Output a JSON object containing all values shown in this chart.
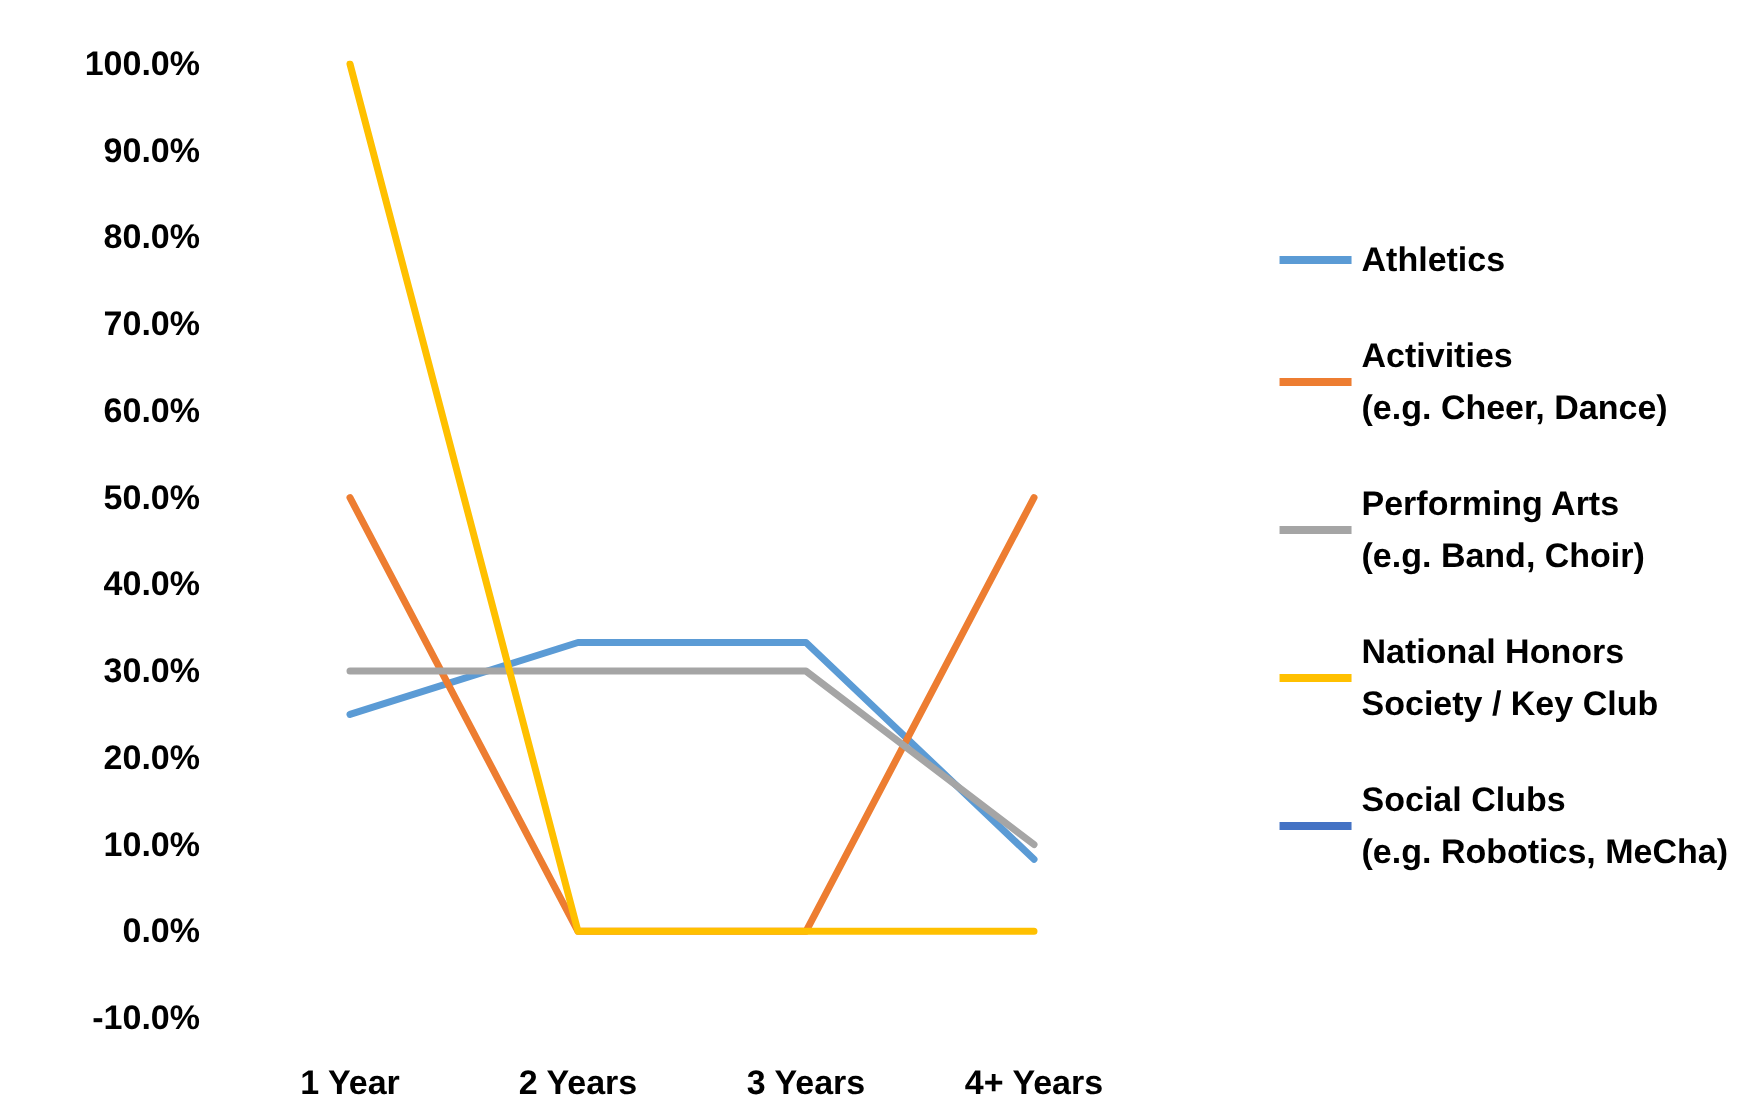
{
  "chart_data": {
    "type": "line",
    "categories": [
      "1 Year",
      "2 Years",
      "3 Years",
      "4+ Years"
    ],
    "series": [
      {
        "name": "Athletics",
        "color": "#5b9bd5",
        "values": [
          25,
          33.3,
          33.3,
          8.3
        ]
      },
      {
        "name": "Activities\n(e.g. Cheer, Dance)",
        "color": "#ed7d31",
        "values": [
          50,
          0,
          0,
          50
        ]
      },
      {
        "name": "Performing Arts\n(e.g. Band, Choir)",
        "color": "#a5a5a5",
        "values": [
          30,
          30,
          30,
          10
        ]
      },
      {
        "name": "National Honors\nSociety / Key Club",
        "color": "#ffc000",
        "values": [
          100,
          0,
          0,
          0
        ]
      },
      {
        "name": "Social Clubs\n(e.g. Robotics, MeCha)",
        "color": "#4472c4",
        "values": [
          null,
          null,
          null,
          null
        ]
      }
    ],
    "ylim": [
      -10,
      100
    ],
    "yticks": [
      {
        "value": -10,
        "label": "-10.0%"
      },
      {
        "value": 0,
        "label": "0.0%"
      },
      {
        "value": 10,
        "label": "10.0%"
      },
      {
        "value": 20,
        "label": "20.0%"
      },
      {
        "value": 30,
        "label": "30.0%"
      },
      {
        "value": 40,
        "label": "40.0%"
      },
      {
        "value": 50,
        "label": "50.0%"
      },
      {
        "value": 60,
        "label": "60.0%"
      },
      {
        "value": 70,
        "label": "70.0%"
      },
      {
        "value": 80,
        "label": "80.0%"
      },
      {
        "value": 90,
        "label": "90.0%"
      },
      {
        "value": 100,
        "label": "100.0%"
      }
    ],
    "grid": false,
    "legend": "right",
    "marker": "none",
    "line_style": "solid"
  }
}
